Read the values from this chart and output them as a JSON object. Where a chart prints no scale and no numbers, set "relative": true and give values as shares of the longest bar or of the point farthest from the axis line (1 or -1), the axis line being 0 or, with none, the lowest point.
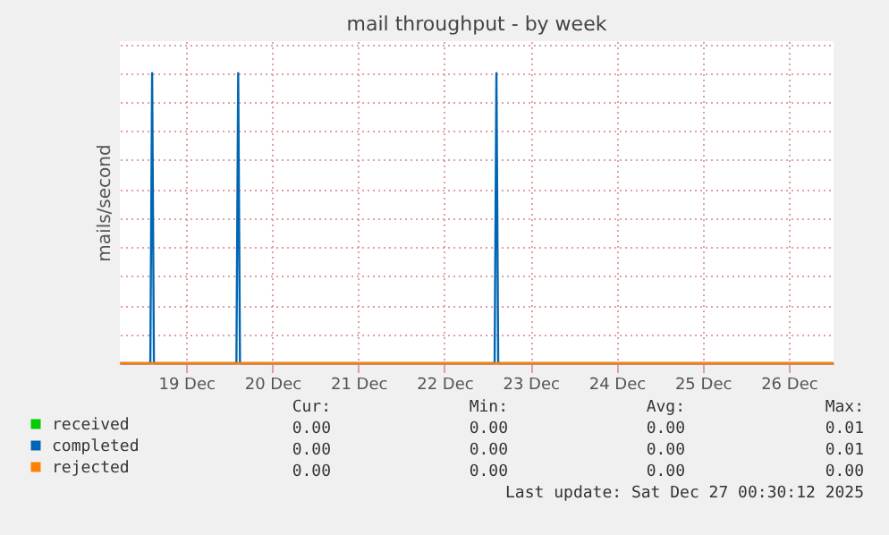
{
  "chart_data": {
    "type": "line",
    "title": "mail throughput - by week",
    "ylabel": "mails/second",
    "relative": true,
    "x": [
      "2025-12-18T17:30",
      "2025-12-19T02:00",
      "2025-12-19T02:30",
      "2025-12-19T03:00",
      "2025-12-20T02:00",
      "2025-12-20T02:30",
      "2025-12-20T03:00",
      "2025-12-23T02:00",
      "2025-12-23T02:30",
      "2025-12-23T03:00",
      "2025-12-27T00:30"
    ],
    "xlim": [
      "2025-12-18T17:30",
      "2025-12-27T00:30"
    ],
    "xticks": [
      {
        "value": "2025-12-19T12:00",
        "label": "19 Dec"
      },
      {
        "value": "2025-12-20T12:00",
        "label": "20 Dec"
      },
      {
        "value": "2025-12-21T12:00",
        "label": "21 Dec"
      },
      {
        "value": "2025-12-22T12:00",
        "label": "22 Dec"
      },
      {
        "value": "2025-12-23T12:00",
        "label": "23 Dec"
      },
      {
        "value": "2025-12-24T12:00",
        "label": "24 Dec"
      },
      {
        "value": "2025-12-25T12:00",
        "label": "25 Dec"
      },
      {
        "value": "2025-12-26T12:00",
        "label": "26 Dec"
      }
    ],
    "series": [
      {
        "name": "received",
        "color": "#00cc00",
        "values": [
          null,
          null,
          null,
          null,
          null,
          null,
          null,
          null,
          null,
          null,
          null
        ]
      },
      {
        "name": "completed",
        "color": "#0066b3",
        "values": [
          0,
          0,
          1,
          0,
          0,
          1,
          0,
          0,
          1,
          0,
          0
        ]
      },
      {
        "name": "rejected",
        "color": "#ff8000",
        "values": [
          0,
          0,
          0,
          0,
          0,
          0,
          0,
          0,
          0,
          0,
          0
        ]
      }
    ],
    "legend": "bottom",
    "grid": true,
    "marker": "none",
    "line_style": "solid",
    "annotations": [
      "Cur:",
      "Min:",
      "Avg:",
      "Max:",
      "0.00",
      "0.00",
      "0.00",
      "0.01",
      "0.00",
      "0.00",
      "0.00",
      "0.01",
      "0.00",
      "0.00",
      "0.00",
      "0.00",
      "Last update: Sat Dec 27 00:30:12 2025"
    ]
  }
}
